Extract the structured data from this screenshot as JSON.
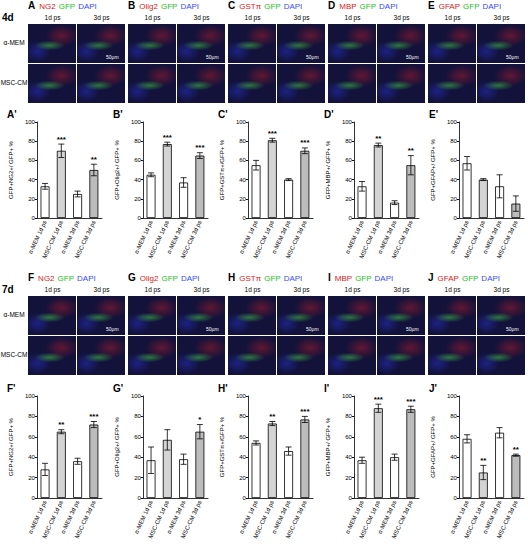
{
  "image_rows": [
    {
      "time": "4d",
      "columns": [
        "1d ps",
        "3d ps"
      ],
      "conditions": [
        "α-MEM",
        "MSC-CM"
      ],
      "panels": [
        {
          "letter": "A",
          "labels": [
            "NG2",
            "GFP",
            "DAPI"
          ],
          "scale_bar": "50μm"
        },
        {
          "letter": "B",
          "labels": [
            "Olig2",
            "GFP",
            "DAPI"
          ],
          "scale_bar": "50μm"
        },
        {
          "letter": "C",
          "labels": [
            "GSTπ",
            "GFP",
            "DAPI"
          ],
          "scale_bar": "50μm"
        },
        {
          "letter": "D",
          "labels": [
            "MBP",
            "GFP",
            "DAPI"
          ],
          "scale_bar": "50μm"
        },
        {
          "letter": "E",
          "labels": [
            "GFAP",
            "GFP",
            "DAPI"
          ],
          "scale_bar": "50μm"
        }
      ]
    },
    {
      "time": "7d",
      "columns": [
        "1d ps",
        "3d ps"
      ],
      "conditions": [
        "α-MEM",
        "MSC-CM"
      ],
      "panels": [
        {
          "letter": "F",
          "labels": [
            "NG2",
            "GFP",
            "DAPI"
          ],
          "scale_bar": "50μm"
        },
        {
          "letter": "G",
          "labels": [
            "Olig2",
            "GFP",
            "DAPI"
          ],
          "scale_bar": "50μm"
        },
        {
          "letter": "H",
          "labels": [
            "GSTπ",
            "GFP",
            "DAPI"
          ],
          "scale_bar": "50μm"
        },
        {
          "letter": "I",
          "labels": [
            "MBP",
            "GFP",
            "DAPI"
          ],
          "scale_bar": "50μm"
        },
        {
          "letter": "J",
          "labels": [
            "GFAP",
            "GFP",
            "DAPI"
          ],
          "scale_bar": "50μm"
        }
      ]
    }
  ],
  "chart_data": [
    {
      "type": "bar",
      "title": "A'",
      "y_label": "GFP+NG2+/ GFP+ %",
      "categories": [
        "α-MEM 1d ps",
        "MSC-CM 1d ps",
        "α-MEM 3d ps",
        "MSC-CM 3d ps"
      ],
      "values": [
        33,
        70,
        25,
        50
      ],
      "errors": [
        3,
        7,
        3,
        6
      ],
      "colors": [
        "#ffffff",
        "#d4d4d4",
        "#ffffff",
        "#bcbcbc"
      ],
      "ylim": [
        0,
        100
      ],
      "yticks": [
        0,
        20,
        40,
        60,
        80,
        100
      ],
      "grid": false,
      "annotations": [
        {
          "index": 1,
          "text": "***"
        },
        {
          "index": 3,
          "text": "**"
        }
      ]
    },
    {
      "type": "bar",
      "title": "B'",
      "y_label": "GFP+Olig2+/ GFP+ %",
      "categories": [
        "α-MEM 1d ps",
        "MSC-CM 1d ps",
        "α-MEM 3d ps",
        "MSC-CM 3d ps"
      ],
      "values": [
        45,
        77,
        37,
        65
      ],
      "errors": [
        2,
        2,
        5,
        3
      ],
      "colors": [
        "#ffffff",
        "#d4d4d4",
        "#ffffff",
        "#bcbcbc"
      ],
      "ylim": [
        0,
        100
      ],
      "yticks": [
        0,
        20,
        40,
        60,
        80,
        100
      ],
      "grid": false,
      "annotations": [
        {
          "index": 1,
          "text": "***"
        },
        {
          "index": 3,
          "text": "***"
        }
      ]
    },
    {
      "type": "bar",
      "title": "C'",
      "y_label": "GFP+GSTπ+/GFP+ %",
      "categories": [
        "α-MEM 1d ps",
        "MSC-CM 1d ps",
        "α-MEM 3d ps",
        "MSC-CM 3d ps"
      ],
      "values": [
        55,
        81,
        40,
        70
      ],
      "errors": [
        5,
        2,
        1,
        3
      ],
      "colors": [
        "#ffffff",
        "#d4d4d4",
        "#ffffff",
        "#bcbcbc"
      ],
      "ylim": [
        0,
        100
      ],
      "yticks": [
        0,
        20,
        40,
        60,
        80,
        100
      ],
      "grid": false,
      "annotations": [
        {
          "index": 1,
          "text": "***"
        },
        {
          "index": 3,
          "text": "***"
        }
      ]
    },
    {
      "type": "bar",
      "title": "D'",
      "y_label": "GFP+MBP+/ GFP+ %",
      "categories": [
        "α-MEM 1d ps",
        "MSC-CM 1d ps",
        "α-MEM 3d ps",
        "MSC-CM 3d ps"
      ],
      "values": [
        33,
        76,
        16,
        55
      ],
      "errors": [
        5,
        2,
        2,
        10
      ],
      "colors": [
        "#ffffff",
        "#d4d4d4",
        "#ffffff",
        "#bcbcbc"
      ],
      "ylim": [
        0,
        100
      ],
      "yticks": [
        0,
        20,
        40,
        60,
        80,
        100
      ],
      "grid": false,
      "annotations": [
        {
          "index": 1,
          "text": "**"
        },
        {
          "index": 3,
          "text": "**"
        }
      ]
    },
    {
      "type": "bar",
      "title": "E'",
      "y_label": "GFP+GFAP+/ GFP+ %",
      "categories": [
        "α-MEM 1d ps",
        "MSC-CM 1d ps",
        "α-MEM 3d ps",
        "MSC-CM 3d ps"
      ],
      "values": [
        57,
        40,
        33,
        15
      ],
      "errors": [
        7,
        1,
        12,
        8
      ],
      "colors": [
        "#ffffff",
        "#d4d4d4",
        "#ffffff",
        "#bcbcbc"
      ],
      "ylim": [
        0,
        100
      ],
      "yticks": [
        0,
        20,
        40,
        60,
        80,
        100
      ],
      "grid": false,
      "annotations": []
    },
    {
      "type": "bar",
      "title": "F'",
      "y_label": "GFP+NG2+/ GFP+ %",
      "categories": [
        "α-MEM 1d ps",
        "MSC-CM 1d ps",
        "α-MEM 3d ps",
        "MSC-CM 3d ps"
      ],
      "values": [
        28,
        65,
        36,
        72
      ],
      "errors": [
        6,
        2,
        3,
        3
      ],
      "colors": [
        "#ffffff",
        "#d4d4d4",
        "#ffffff",
        "#bcbcbc"
      ],
      "ylim": [
        0,
        100
      ],
      "yticks": [
        0,
        20,
        40,
        60,
        80,
        100
      ],
      "grid": false,
      "annotations": [
        {
          "index": 1,
          "text": "**"
        },
        {
          "index": 3,
          "text": "***"
        }
      ]
    },
    {
      "type": "bar",
      "title": "G'",
      "y_label": "GFP+Olig2+/ GFP+ %",
      "categories": [
        "α-MEM 1d ps",
        "MSC-CM 1d ps",
        "α-MEM 3d ps",
        "MSC-CM 3d ps"
      ],
      "values": [
        37,
        57,
        38,
        65
      ],
      "errors": [
        13,
        10,
        5,
        7
      ],
      "colors": [
        "#ffffff",
        "#d4d4d4",
        "#ffffff",
        "#bcbcbc"
      ],
      "ylim": [
        0,
        100
      ],
      "yticks": [
        0,
        20,
        40,
        60,
        80,
        100
      ],
      "grid": false,
      "annotations": [
        {
          "index": 3,
          "text": "*"
        }
      ]
    },
    {
      "type": "bar",
      "title": "H'",
      "y_label": "GFP+GSTπ+/GFP+ %",
      "categories": [
        "α-MEM 1d ps",
        "MSC-CM 1d ps",
        "α-MEM 3d ps",
        "MSC-CM 3d ps"
      ],
      "values": [
        54,
        73,
        46,
        77
      ],
      "errors": [
        2,
        2,
        4,
        3
      ],
      "colors": [
        "#ffffff",
        "#d4d4d4",
        "#ffffff",
        "#bcbcbc"
      ],
      "ylim": [
        0,
        100
      ],
      "yticks": [
        0,
        20,
        40,
        60,
        80,
        100
      ],
      "grid": false,
      "annotations": [
        {
          "index": 1,
          "text": "**"
        },
        {
          "index": 3,
          "text": "***"
        }
      ]
    },
    {
      "type": "bar",
      "title": "I'",
      "y_label": "GFP+MBP+/ GFP+ %",
      "categories": [
        "α-MEM 1d ps",
        "MSC-CM 1d ps",
        "α-MEM 3d ps",
        "MSC-CM 3d ps"
      ],
      "values": [
        37,
        88,
        40,
        87
      ],
      "errors": [
        3,
        4,
        3,
        3
      ],
      "colors": [
        "#ffffff",
        "#d4d4d4",
        "#ffffff",
        "#bcbcbc"
      ],
      "ylim": [
        0,
        100
      ],
      "yticks": [
        0,
        20,
        40,
        60,
        80,
        100
      ],
      "grid": false,
      "annotations": [
        {
          "index": 1,
          "text": "***"
        },
        {
          "index": 3,
          "text": "***"
        }
      ]
    },
    {
      "type": "bar",
      "title": "J'",
      "y_label": "GFP+GFAP+/ GFP+ %",
      "categories": [
        "α-MEM 1d ps",
        "MSC-CM 1d ps",
        "α-MEM 3d ps",
        "MSC-CM 3d ps"
      ],
      "values": [
        58,
        25,
        64,
        42
      ],
      "errors": [
        4,
        7,
        5,
        1
      ],
      "colors": [
        "#ffffff",
        "#d4d4d4",
        "#ffffff",
        "#bcbcbc"
      ],
      "ylim": [
        0,
        100
      ],
      "yticks": [
        0,
        20,
        40,
        60,
        80,
        100
      ],
      "grid": false,
      "annotations": [
        {
          "index": 1,
          "text": "**"
        },
        {
          "index": 3,
          "text": "**"
        }
      ]
    }
  ]
}
